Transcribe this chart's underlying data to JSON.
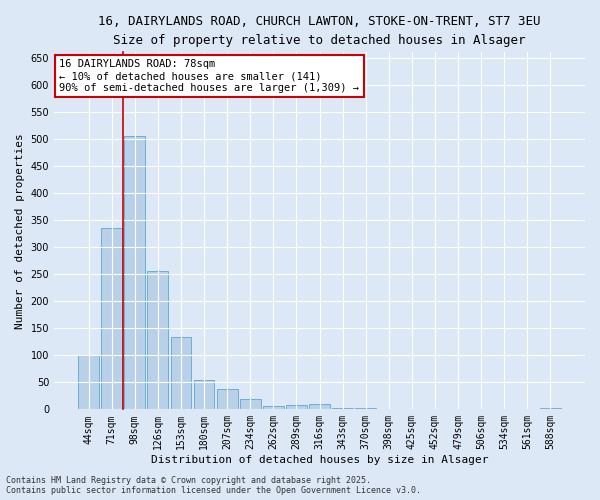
{
  "title_line1": "16, DAIRYLANDS ROAD, CHURCH LAWTON, STOKE-ON-TRENT, ST7 3EU",
  "title_line2": "Size of property relative to detached houses in Alsager",
  "xlabel": "Distribution of detached houses by size in Alsager",
  "ylabel": "Number of detached properties",
  "bar_labels": [
    "44sqm",
    "71sqm",
    "98sqm",
    "126sqm",
    "153sqm",
    "180sqm",
    "207sqm",
    "234sqm",
    "262sqm",
    "289sqm",
    "316sqm",
    "343sqm",
    "370sqm",
    "398sqm",
    "425sqm",
    "452sqm",
    "479sqm",
    "506sqm",
    "534sqm",
    "561sqm",
    "588sqm"
  ],
  "bar_values": [
    100,
    335,
    505,
    255,
    133,
    55,
    38,
    20,
    6,
    8,
    9,
    3,
    2,
    1,
    0,
    0,
    0,
    0,
    0,
    0,
    3
  ],
  "bar_color": "#b8d0e8",
  "bar_edge_color": "#6baed6",
  "background_color": "#dce8f5",
  "grid_color": "#ffffff",
  "red_line_x": 1.5,
  "annotation_text": "16 DAIRYLANDS ROAD: 78sqm\n← 10% of detached houses are smaller (141)\n90% of semi-detached houses are larger (1,309) →",
  "annotation_box_facecolor": "#ffffff",
  "annotation_box_edgecolor": "#cc0000",
  "ylim": [
    0,
    660
  ],
  "yticks": [
    0,
    50,
    100,
    150,
    200,
    250,
    300,
    350,
    400,
    450,
    500,
    550,
    600,
    650
  ],
  "footer_line1": "Contains HM Land Registry data © Crown copyright and database right 2025.",
  "footer_line2": "Contains public sector information licensed under the Open Government Licence v3.0.",
  "title_fontsize": 9,
  "subtitle_fontsize": 8.5,
  "axis_label_fontsize": 8,
  "tick_fontsize": 7,
  "annotation_fontsize": 7.5,
  "footer_fontsize": 6
}
